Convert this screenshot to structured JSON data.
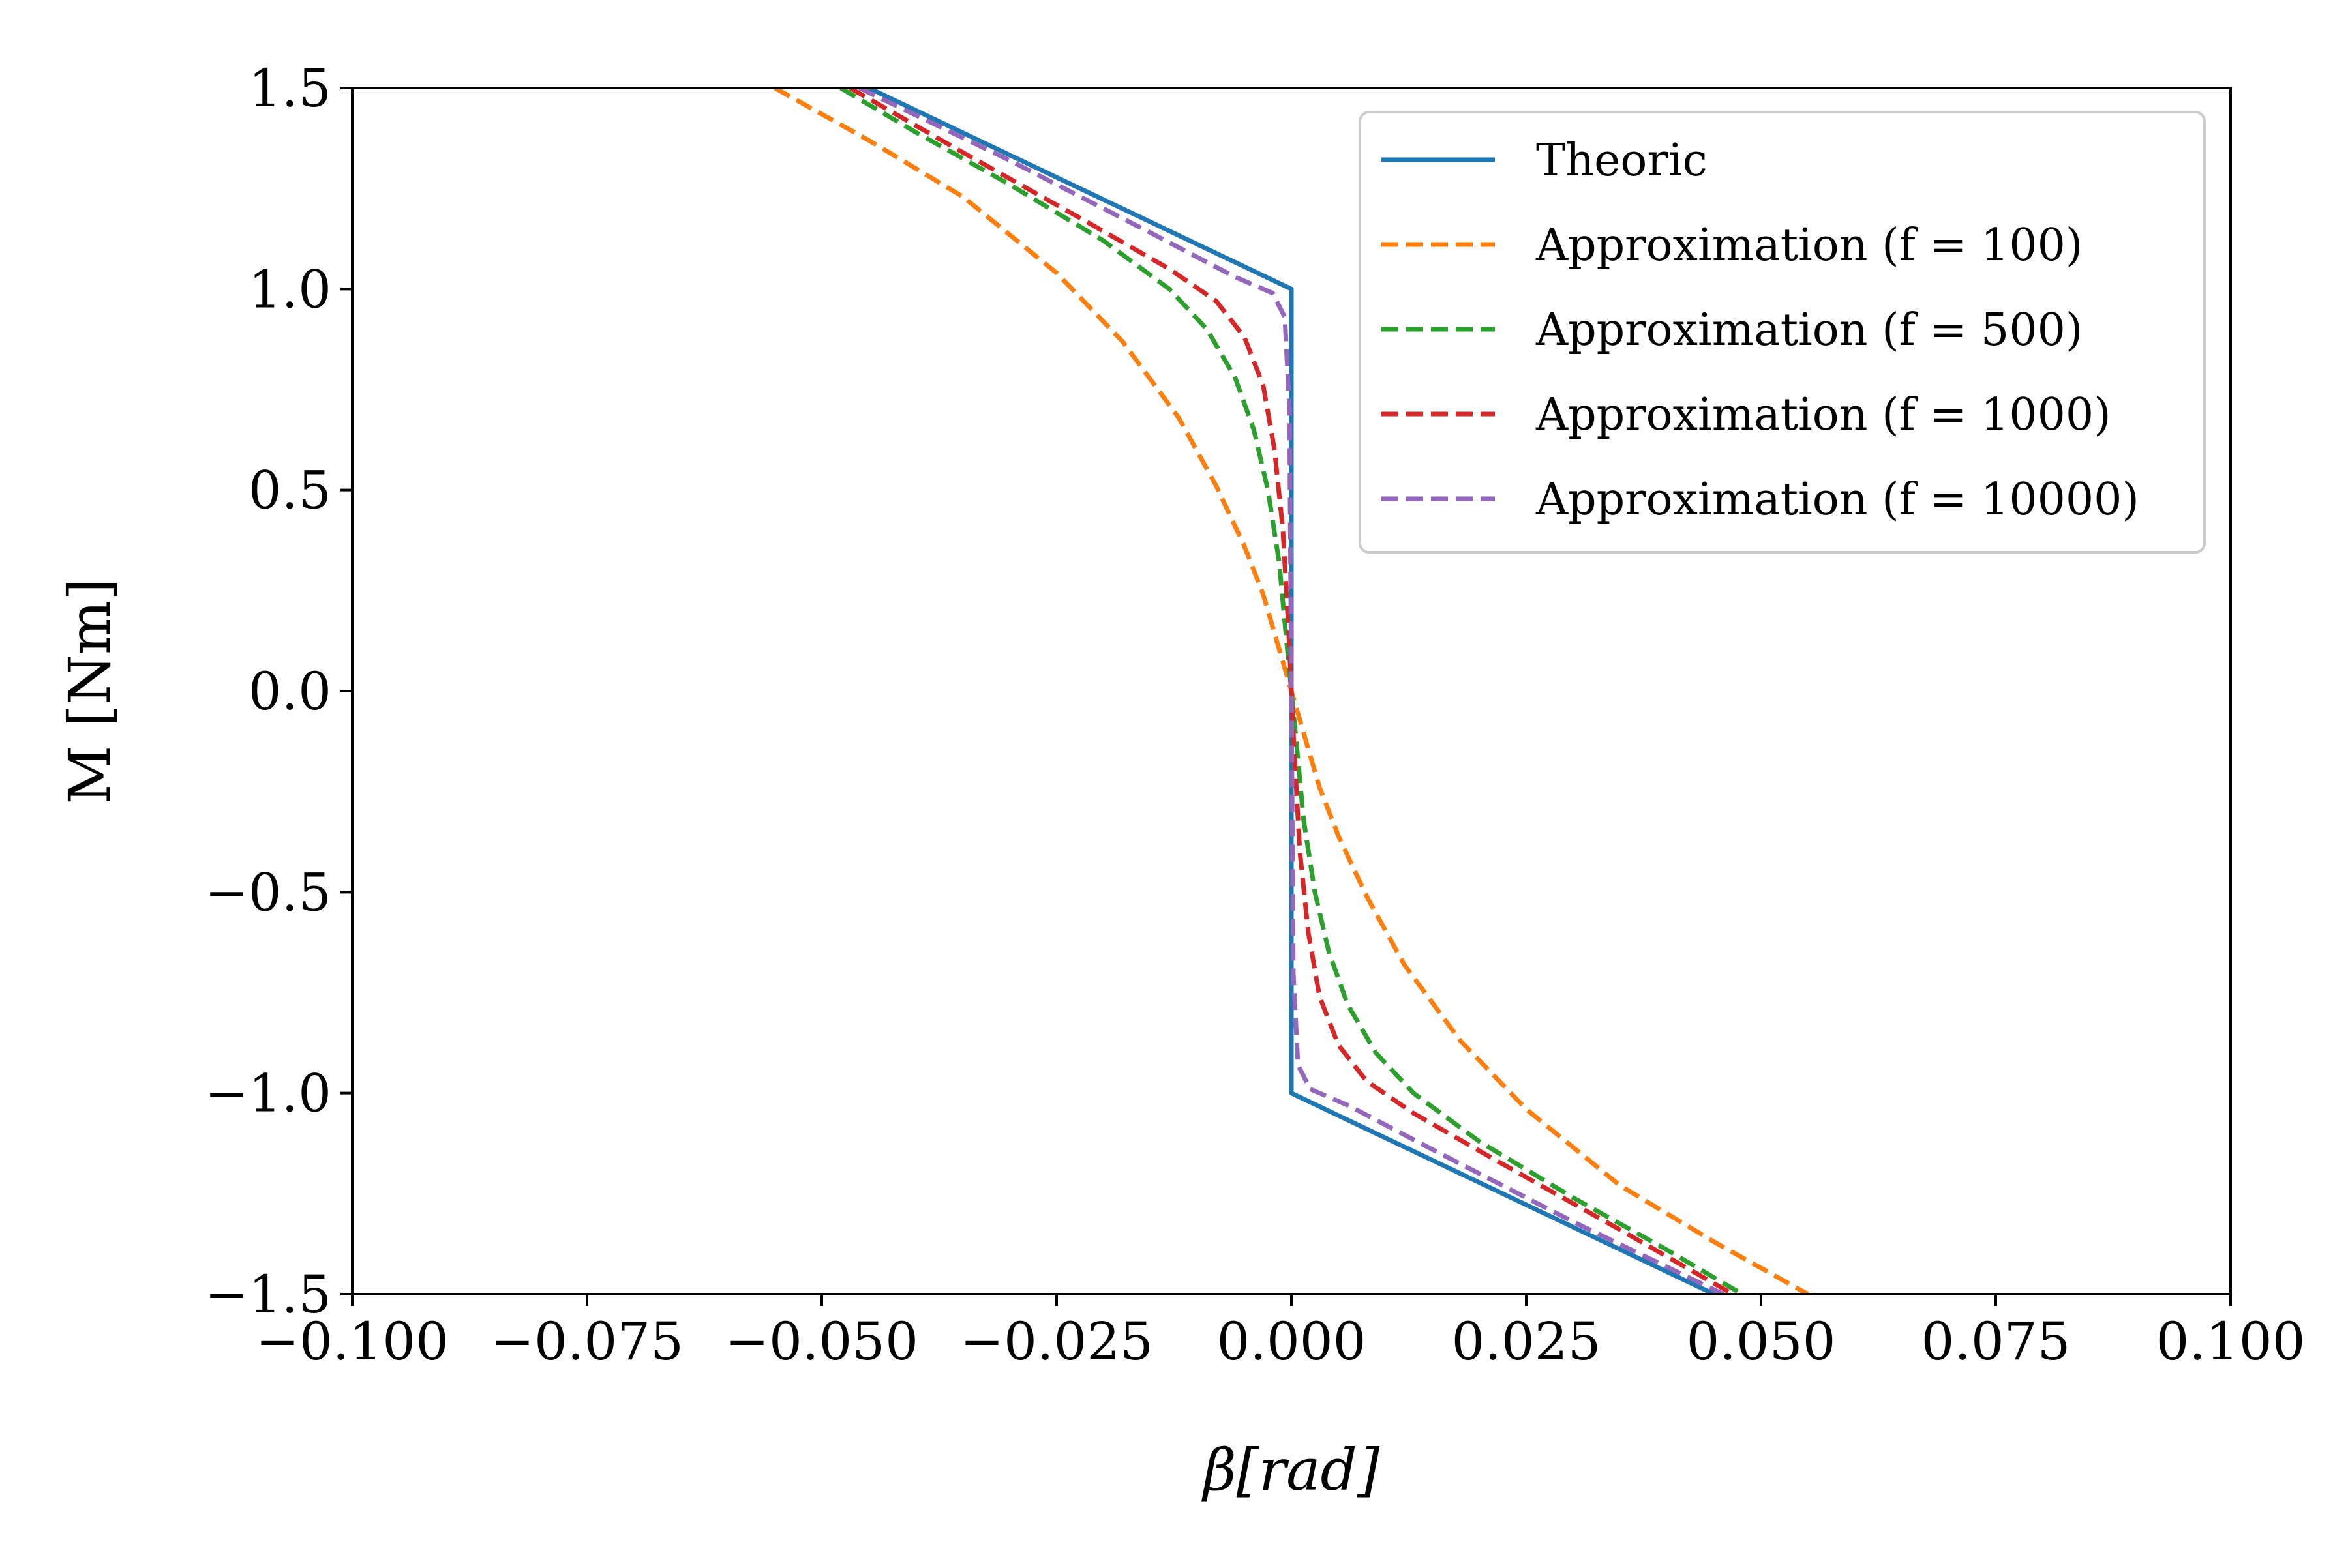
{
  "chart_data": {
    "type": "line",
    "title": "",
    "xlabel": "β[rad]",
    "ylabel": "M [Nm]",
    "xlim": [
      -0.1,
      0.1
    ],
    "ylim": [
      -1.5,
      1.5
    ],
    "x_ticks": [
      "−0.100",
      "−0.075",
      "−0.050",
      "−0.025",
      "0.000",
      "0.025",
      "0.050",
      "0.075",
      "0.100"
    ],
    "y_ticks": [
      "−1.5",
      "−1.0",
      "−0.5",
      "0.0",
      "0.5",
      "1.0",
      "1.5"
    ],
    "grid": false,
    "legend_position": "top-right",
    "series": [
      {
        "name": "Theoric",
        "color": "#1f77b4",
        "style": "solid",
        "x": [
          -0.045,
          0.0,
          0.0,
          0.045
        ],
        "y": [
          1.5,
          1.0,
          -1.0,
          -1.5
        ]
      },
      {
        "name": "Approximation (f = 100)",
        "color": "#ff7f0e",
        "style": "dashed",
        "x": [
          -0.055,
          -0.045,
          -0.035,
          -0.025,
          -0.018,
          -0.012,
          -0.008,
          -0.005,
          -0.003,
          -0.0015,
          0.0,
          0.0015,
          0.003,
          0.005,
          0.008,
          0.012,
          0.018,
          0.025,
          0.035,
          0.045,
          0.055
        ],
        "y": [
          1.5,
          1.37,
          1.23,
          1.04,
          0.87,
          0.68,
          0.51,
          0.36,
          0.24,
          0.12,
          0.0,
          -0.12,
          -0.24,
          -0.36,
          -0.51,
          -0.68,
          -0.87,
          -1.04,
          -1.23,
          -1.37,
          -1.5
        ]
      },
      {
        "name": "Approximation (f = 500)",
        "color": "#2ca02c",
        "style": "dashed",
        "x": [
          -0.048,
          -0.04,
          -0.03,
          -0.02,
          -0.013,
          -0.009,
          -0.006,
          -0.004,
          -0.0025,
          -0.0013,
          -0.0005,
          0.0,
          0.0005,
          0.0013,
          0.0025,
          0.004,
          0.006,
          0.009,
          0.013,
          0.02,
          0.03,
          0.04,
          0.048
        ],
        "y": [
          1.5,
          1.39,
          1.26,
          1.12,
          1.0,
          0.9,
          0.78,
          0.65,
          0.5,
          0.32,
          0.12,
          0.0,
          -0.12,
          -0.32,
          -0.5,
          -0.65,
          -0.78,
          -0.9,
          -1.0,
          -1.12,
          -1.26,
          -1.39,
          -1.5
        ]
      },
      {
        "name": "Approximation (f = 1000)",
        "color": "#d62728",
        "style": "dashed",
        "x": [
          -0.047,
          -0.035,
          -0.022,
          -0.013,
          -0.008,
          -0.005,
          -0.003,
          -0.0018,
          -0.0009,
          -0.0003,
          0.0,
          0.0003,
          0.0009,
          0.0018,
          0.003,
          0.005,
          0.008,
          0.013,
          0.022,
          0.035,
          0.047
        ],
        "y": [
          1.5,
          1.34,
          1.17,
          1.05,
          0.97,
          0.88,
          0.76,
          0.6,
          0.4,
          0.15,
          0.0,
          -0.15,
          -0.4,
          -0.6,
          -0.76,
          -0.88,
          -0.97,
          -1.05,
          -1.17,
          -1.34,
          -1.5
        ]
      },
      {
        "name": "Approximation (f = 10000)",
        "color": "#9467bd",
        "style": "dashed",
        "x": [
          -0.046,
          -0.03,
          -0.015,
          -0.006,
          -0.002,
          -0.0007,
          -0.0002,
          0.0,
          0.0002,
          0.0007,
          0.002,
          0.006,
          0.015,
          0.03,
          0.046
        ],
        "y": [
          1.5,
          1.32,
          1.14,
          1.03,
          0.99,
          0.93,
          0.7,
          0.0,
          -0.7,
          -0.93,
          -0.99,
          -1.03,
          -1.14,
          -1.32,
          -1.5
        ]
      }
    ]
  }
}
